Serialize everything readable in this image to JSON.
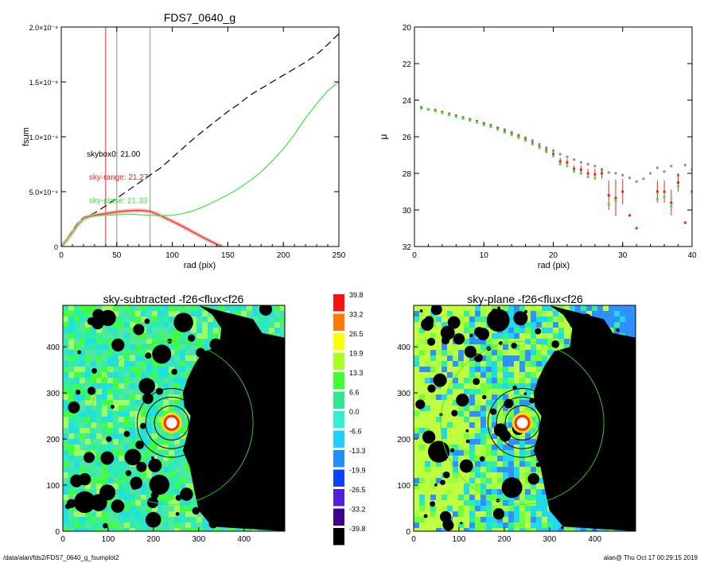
{
  "footer": {
    "path": "/data/alan/fds2/FDS7_0640_g_fsumplot2",
    "stamp": "alan@  Thu Oct 17 00:29:15 2019"
  },
  "colors": {
    "total": "#000000",
    "sky_range": "#e8281e",
    "sky_plane": "#3ce63c",
    "marker_gray": "#909090"
  },
  "chart_data": [
    {
      "type": "line",
      "title": "FDS7_0640_g",
      "xlabel": "rad (pix)",
      "ylabel": "fsum",
      "xlim": [
        0,
        250
      ],
      "ylim": [
        0,
        2e-08
      ],
      "xticks": [
        "0",
        "50",
        "100",
        "150",
        "200",
        "250"
      ],
      "yticks": [
        "0",
        "5.0×10⁻⁹",
        "1.0×10⁻⁸",
        "1.5×10⁻⁸",
        "2.0×10⁻⁸"
      ],
      "ytick_values": [
        0,
        5e-09,
        1e-08,
        1.5e-08,
        2e-08
      ],
      "vlines": [
        {
          "x": 40,
          "color": "#e8281e"
        },
        {
          "x": 50,
          "color": "#909090"
        },
        {
          "x": 80,
          "color": "#909090"
        }
      ],
      "annotations": [
        {
          "text": "skybox0: 21.00",
          "color": "#000000",
          "x": 23,
          "y": 8.2e-09
        },
        {
          "text": "sky-range: 21.27",
          "color": "#e8281e",
          "x": 25,
          "y": 6.1e-09
        },
        {
          "text": "sky-plane: 21.33",
          "color": "#3ce63c",
          "x": 25,
          "y": 3.95e-09
        }
      ],
      "series": [
        {
          "style": "dashed",
          "color": "#000000",
          "x": [
            0,
            5,
            10,
            15,
            20,
            30,
            40,
            50,
            60,
            70,
            80,
            90,
            100,
            110,
            120,
            130,
            140,
            150,
            160,
            170,
            180,
            190,
            200,
            210,
            220,
            230,
            240,
            250
          ],
          "y": [
            0,
            6e-10,
            1.4e-09,
            2.2e-09,
            2.65e-09,
            3.05e-09,
            3.7e-09,
            4.4e-09,
            5.1e-09,
            5.8e-09,
            6.5e-09,
            7.2e-09,
            8.1e-09,
            9e-09,
            9.9e-09,
            1.07e-08,
            1.15e-08,
            1.23e-08,
            1.3e-08,
            1.38e-08,
            1.44e-08,
            1.5e-08,
            1.56e-08,
            1.62e-08,
            1.68e-08,
            1.75e-08,
            1.84e-08,
            1.94e-08
          ]
        },
        {
          "style": "solid",
          "color": "#e8281e",
          "x": [
            0,
            5,
            10,
            15,
            20,
            25,
            30,
            40,
            50,
            60,
            70,
            80,
            90,
            100,
            110,
            120,
            130,
            140,
            145
          ],
          "y": [
            0,
            6e-10,
            1.3e-09,
            2e-09,
            2.5e-09,
            2.75e-09,
            2.85e-09,
            3e-09,
            3.15e-09,
            3.25e-09,
            3.3e-09,
            3.2e-09,
            2.8e-09,
            2.3e-09,
            1.8e-09,
            1.25e-09,
            7e-10,
            2e-10,
            0
          ]
        },
        {
          "style": "solid",
          "color": "#3ce63c",
          "x": [
            0,
            5,
            10,
            15,
            20,
            25,
            30,
            40,
            50,
            60,
            70,
            80,
            90,
            100,
            110,
            120,
            130,
            140,
            150,
            160,
            170,
            180,
            190,
            200,
            210,
            220,
            230,
            240,
            250
          ],
          "y": [
            0,
            6e-10,
            1.3e-09,
            2e-09,
            2.5e-09,
            2.7e-09,
            2.8e-09,
            2.85e-09,
            2.9e-09,
            2.95e-09,
            2.9e-09,
            2.85e-09,
            2.8e-09,
            2.85e-09,
            3e-09,
            3.3e-09,
            3.7e-09,
            4.2e-09,
            4.7e-09,
            5.3e-09,
            6e-09,
            6.8e-09,
            7.8e-09,
            8.9e-09,
            1.02e-08,
            1.17e-08,
            1.3e-08,
            1.42e-08,
            1.5e-08
          ]
        }
      ]
    },
    {
      "type": "scatter",
      "title": "",
      "xlabel": "rad (pix)",
      "ylabel": "μ",
      "xlim": [
        0,
        40
      ],
      "ylim": [
        32,
        20
      ],
      "xticks": [
        "0",
        "10",
        "20",
        "30",
        "40"
      ],
      "yticks": [
        "20",
        "22",
        "24",
        "26",
        "28",
        "30",
        "32"
      ],
      "series": [
        {
          "color": "#909090",
          "x": [
            1,
            2,
            3,
            4,
            5,
            6,
            7,
            8,
            9,
            10,
            11,
            12,
            13,
            14,
            15,
            16,
            17,
            18,
            19,
            20,
            21,
            22,
            23,
            24,
            25,
            26,
            27,
            28,
            29,
            30,
            31,
            32,
            33,
            34,
            35,
            36,
            37,
            38,
            39,
            40
          ],
          "y": [
            24.4,
            24.5,
            24.55,
            24.65,
            24.75,
            24.85,
            24.95,
            25.05,
            25.15,
            25.25,
            25.35,
            25.5,
            25.6,
            25.75,
            25.9,
            26.05,
            26.2,
            26.4,
            26.6,
            26.75,
            26.95,
            27.1,
            27.25,
            27.4,
            27.5,
            27.6,
            27.8,
            27.95,
            28.0,
            28.1,
            28.25,
            28.45,
            28.3,
            28.0,
            27.7,
            27.9,
            27.6,
            28.1,
            27.55,
            27.8
          ]
        },
        {
          "color": "#e8281e",
          "x": [
            1,
            2,
            3,
            4,
            5,
            6,
            7,
            8,
            9,
            10,
            11,
            12,
            13,
            14,
            15,
            16,
            17,
            18,
            19,
            20,
            21,
            22,
            23,
            24,
            25,
            26,
            27,
            28,
            29,
            30,
            31,
            32,
            35,
            36,
            37,
            38,
            39,
            40
          ],
          "y": [
            24.4,
            24.5,
            24.55,
            24.65,
            24.75,
            24.85,
            24.95,
            25.05,
            25.15,
            25.3,
            25.4,
            25.55,
            25.7,
            25.85,
            26.0,
            26.15,
            26.35,
            26.55,
            26.75,
            26.95,
            27.35,
            27.4,
            27.75,
            27.8,
            28.0,
            28.05,
            28.0,
            29.2,
            29.35,
            29.0,
            30.3,
            31.0,
            29.0,
            29.0,
            29.6,
            28.5,
            30.7,
            29.0
          ],
          "err": [
            0.05,
            0.05,
            0.05,
            0.05,
            0.05,
            0.05,
            0.05,
            0.05,
            0.05,
            0.05,
            0.05,
            0.05,
            0.05,
            0.1,
            0.1,
            0.1,
            0.1,
            0.1,
            0.15,
            0.15,
            0.2,
            0.2,
            0.2,
            0.25,
            0.25,
            0.3,
            0.3,
            0.8,
            1.0,
            0.7,
            0,
            0,
            0.6,
            0.6,
            0.7,
            0.5,
            0,
            0.5
          ]
        },
        {
          "color": "#3ce63c",
          "x": [
            1,
            2,
            3,
            4,
            5,
            6,
            7,
            8,
            9,
            10,
            11,
            12,
            13,
            14,
            15,
            16,
            17,
            18,
            19,
            20,
            21,
            22,
            23,
            24,
            25,
            26,
            28,
            29,
            35,
            36,
            37,
            38
          ],
          "y": [
            24.45,
            24.5,
            24.6,
            24.7,
            24.8,
            24.9,
            25.0,
            25.1,
            25.2,
            25.35,
            25.45,
            25.6,
            25.75,
            25.9,
            26.05,
            26.2,
            26.4,
            26.6,
            26.8,
            27.05,
            27.5,
            27.6,
            27.9,
            28.0,
            28.2,
            28.25,
            29.7,
            29.5,
            29.4,
            29.3,
            29.8,
            28.7
          ]
        }
      ]
    },
    {
      "type": "heatmap",
      "title": "sky-subtracted -f26<flux<f26",
      "xlim": [
        0,
        490
      ],
      "ylim": [
        0,
        490
      ],
      "xticks": [
        "0",
        "100",
        "200",
        "300",
        "400"
      ],
      "yticks": [
        "0",
        "100",
        "200",
        "300",
        "400"
      ],
      "palette": [
        "#a0ff60",
        "#40ff40",
        "#30f0a0",
        "#30e8c0",
        "#50e8a0",
        "#20e0e0"
      ],
      "target_center": [
        240,
        235
      ],
      "apertures_r": [
        38,
        57,
        76
      ],
      "masked_galaxy_edge_x": 265
    },
    {
      "type": "heatmap",
      "title": "sky-plane -f26<flux<f26",
      "xlim": [
        0,
        490
      ],
      "ylim": [
        0,
        490
      ],
      "xticks": [
        "0",
        "100",
        "200",
        "300",
        "400"
      ],
      "yticks": [
        "0",
        "100",
        "200",
        "300",
        "400"
      ],
      "palette": [
        "#c0ff40",
        "#a0ff40",
        "#70ff40",
        "#30f0a0",
        "#20d8f0",
        "#3090ff"
      ],
      "target_center": [
        240,
        235
      ],
      "apertures_r": [
        38,
        57,
        76
      ],
      "masked_galaxy_edge_x": 265
    }
  ],
  "colorbar": {
    "labels": [
      "39.8",
      "33.2",
      "26.5",
      "19.9",
      "13.3",
      "6.6",
      "0.0",
      "-6.6",
      "-13.3",
      "-19.9",
      "-26.5",
      "-33.2",
      "-39.8"
    ],
    "colors": [
      "#ff1010",
      "#ff7a00",
      "#ffff00",
      "#a8ff20",
      "#40ff30",
      "#30e890",
      "#30f0d0",
      "#20d0ff",
      "#2090ff",
      "#1040ff",
      "#5020e0",
      "#400090",
      "#000000"
    ]
  }
}
